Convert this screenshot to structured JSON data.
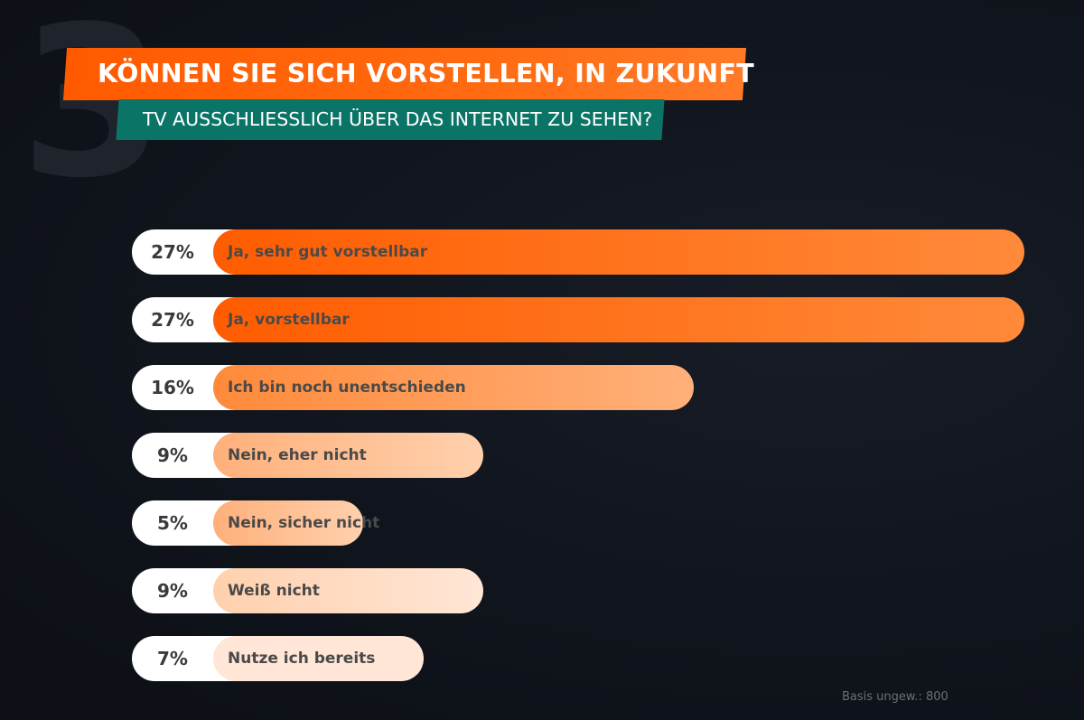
{
  "decor": {
    "number": "3"
  },
  "title": "KÖNNEN SIE SICH VORSTELLEN, IN ZUKUNFT",
  "subtitle": "TV AUSSCHLIESSLICH ÜBER DAS INTERNET ZU SEHEN?",
  "footnote": "Basis ungew.: 800",
  "colors": {
    "title_bg": "#ff6200",
    "subtitle_bg": "#0a7466",
    "bar_gradient": [
      "#ff5c00",
      "#ff8a3a",
      "#ffb07a",
      "#ffd0ad",
      "#ffe6d6"
    ]
  },
  "chart_data": {
    "type": "bar",
    "orientation": "horizontal",
    "categories": [
      "Ja, sehr gut vorstellbar",
      "Ja, vorstellbar",
      "Ich bin noch unentschieden",
      "Nein, eher nicht",
      "Nein, sicher nicht",
      "Weiß nicht",
      "Nutze ich bereits"
    ],
    "values": [
      27,
      27,
      16,
      9,
      5,
      9,
      7
    ],
    "value_labels": [
      "27%",
      "27%",
      "16%",
      "9%",
      "5%",
      "9%",
      "7%"
    ],
    "unit": "%",
    "xlim": [
      0,
      27
    ]
  }
}
